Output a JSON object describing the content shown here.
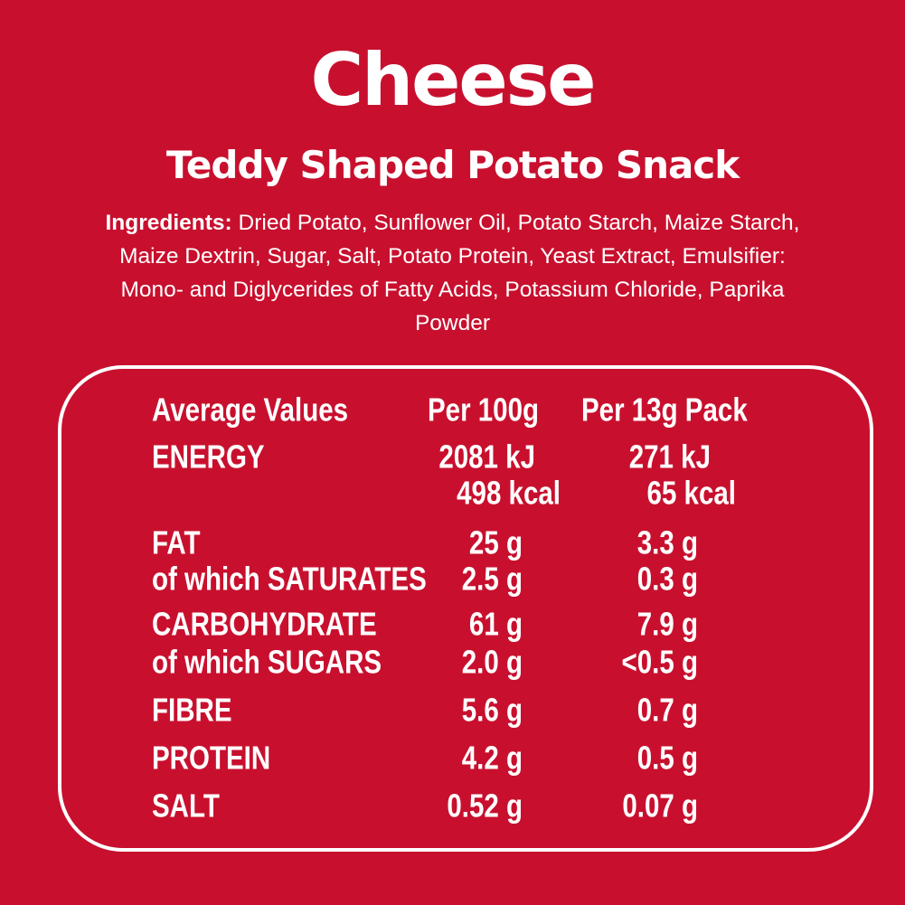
{
  "header": {
    "title": "Cheese",
    "subtitle": "Teddy Shaped Potato Snack"
  },
  "ingredients": {
    "label": "Ingredients:",
    "text": "Dried Potato, Sunflower Oil, Potato Starch, Maize Starch, Maize Dextrin, Sugar, Salt, Potato Protein, Yeast Extract, Emulsifier: Mono- and Diglycerides of Fatty Acids, Potassium Chloride, Paprika Powder"
  },
  "table": {
    "header": [
      "Average Values",
      "Per 100g",
      "Per 13g Pack"
    ],
    "rows": [
      {
        "label": "ENERGY",
        "per_100g": [
          "2081 kJ",
          "498 kcal"
        ],
        "per_pack": [
          "271 kJ",
          "65 kcal"
        ]
      },
      {
        "label": "FAT",
        "per_100g": [
          "25 g"
        ],
        "per_pack": [
          "3.3 g"
        ]
      },
      {
        "label": "of which SATURATES",
        "per_100g": [
          "2.5 g"
        ],
        "per_pack": [
          "0.3 g"
        ]
      },
      {
        "label": "CARBOHYDRATE",
        "per_100g": [
          "61 g"
        ],
        "per_pack": [
          "7.9 g"
        ]
      },
      {
        "label": "of which SUGARS",
        "per_100g": [
          "2.0 g"
        ],
        "per_pack": [
          "<0.5 g"
        ]
      },
      {
        "label": "FIBRE",
        "per_100g": [
          "5.6 g"
        ],
        "per_pack": [
          "0.7 g"
        ]
      },
      {
        "label": "PROTEIN",
        "per_100g": [
          "4.2 g"
        ],
        "per_pack": [
          "0.5 g"
        ]
      },
      {
        "label": "SALT",
        "per_100g": [
          "0.52 g"
        ],
        "per_pack": [
          "0.07 g"
        ]
      }
    ]
  }
}
